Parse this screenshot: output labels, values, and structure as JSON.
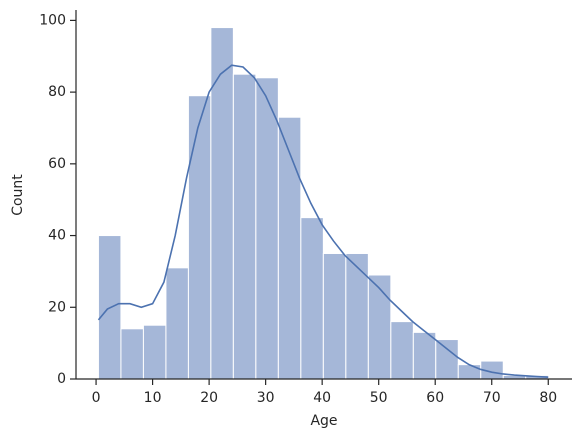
{
  "chart_data": {
    "type": "histogram",
    "xlabel": "Age",
    "ylabel": "Count",
    "bins": [
      0.42,
      4.4,
      8.38,
      12.36,
      16.34,
      20.31,
      24.29,
      28.27,
      32.25,
      36.23,
      40.21,
      44.19,
      48.17,
      52.15,
      56.13,
      60.1,
      64.08,
      68.06,
      72.04,
      76.02,
      80.0
    ],
    "values": [
      40,
      14,
      15,
      31,
      79,
      98,
      85,
      84,
      73,
      45,
      35,
      35,
      29,
      16,
      13,
      11,
      4,
      5,
      1,
      1
    ],
    "color": "#a5b7d8",
    "kde": {
      "color": "#4c72b0",
      "x": [
        0.42,
        2,
        4,
        6,
        8,
        10,
        12,
        14,
        16,
        18,
        20,
        22,
        24,
        26,
        28,
        30,
        32,
        34,
        36,
        38,
        40,
        42,
        44,
        46,
        48,
        50,
        52,
        54,
        56,
        58,
        60,
        62,
        64,
        66,
        68,
        70,
        72,
        74,
        76,
        78,
        80
      ],
      "y": [
        16.5,
        19.5,
        21,
        21,
        20,
        21,
        27,
        40,
        56,
        70,
        80,
        85,
        87.5,
        87,
        84,
        79,
        72,
        64,
        56,
        49,
        43,
        38.5,
        34.5,
        31.5,
        28.5,
        25.5,
        22,
        19,
        16,
        13.5,
        11,
        8.5,
        6,
        4,
        2.7,
        1.9,
        1.4,
        1.1,
        0.9,
        0.7,
        0.5
      ]
    },
    "xlim": [
      -3.55,
      84.2
    ],
    "ylim": [
      0,
      102.9
    ],
    "xticks": [
      0,
      10,
      20,
      30,
      40,
      50,
      60,
      70,
      80
    ],
    "yticks": [
      0,
      20,
      40,
      60,
      80,
      100
    ]
  }
}
